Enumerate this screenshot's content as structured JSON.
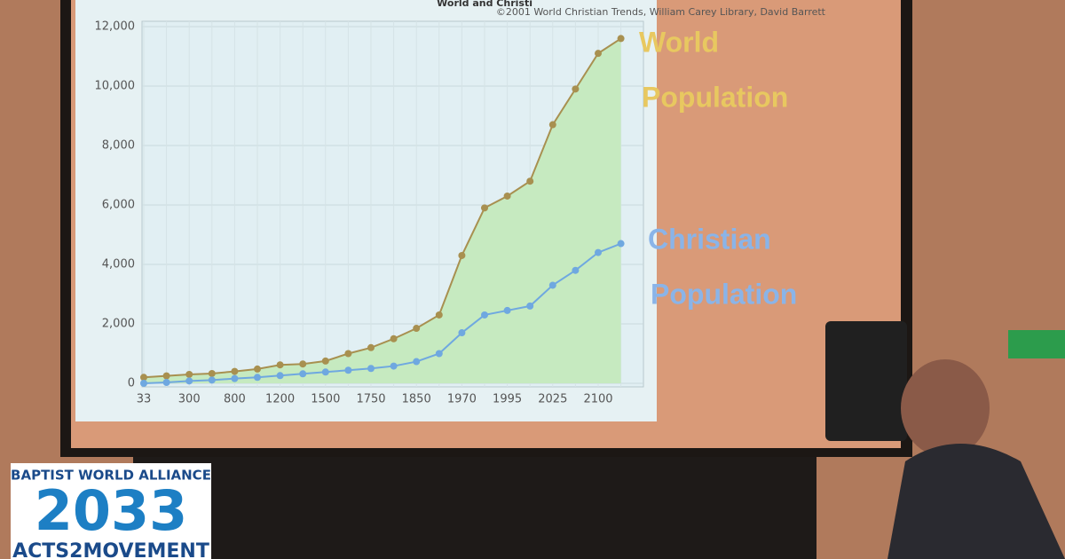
{
  "chart_data": {
    "type": "line",
    "title": "World and Christi",
    "subtitle": "©2001 World Christian Trends, William Carey Library, David Barrett",
    "categories": [
      "33",
      null,
      "300",
      null,
      "800",
      null,
      "1200",
      null,
      "1500",
      null,
      "1750",
      null,
      "1850",
      null,
      "1970",
      null,
      "1995",
      null,
      "2025",
      null,
      "2100",
      null
    ],
    "series": [
      {
        "color": "#a89050",
        "values": [
          200,
          250,
          300,
          330,
          400,
          480,
          620,
          650,
          750,
          1000,
          1200,
          1500,
          1850,
          2300,
          4300,
          5900,
          6300,
          6800,
          8700,
          9900,
          11100,
          11600
        ]
      },
      {
        "color": "#6fa8e0",
        "values": [
          0,
          30,
          80,
          110,
          160,
          200,
          260,
          320,
          380,
          440,
          500,
          580,
          730,
          1000,
          1700,
          2300,
          2450,
          2600,
          3300,
          3800,
          4400,
          4700
        ]
      }
    ],
    "ylim": [
      0,
      12000
    ],
    "yticks": [
      0,
      {
        "value": 2000,
        "label": "2,000"
      },
      {
        "value": 4000,
        "label": "4,000"
      },
      {
        "value": 6000,
        "label": "6,000"
      },
      {
        "value": 8000,
        "label": "8,000"
      },
      {
        "value": 10000,
        "label": "10,000"
      },
      {
        "value": 12000,
        "label": "12,000"
      }
    ],
    "grid": true,
    "area_color": "#c6eac0",
    "annotations": [
      {
        "lines": [
          "World",
          "Population"
        ],
        "color": "#e8c860"
      },
      {
        "lines": [
          "Christian",
          "Population"
        ],
        "color": "#8ab4e8"
      }
    ]
  },
  "logo": {
    "org": "BAPTIST WORLD ALLIANCE",
    "year": "2033",
    "movement": "ACTS2MOVEMENT"
  }
}
